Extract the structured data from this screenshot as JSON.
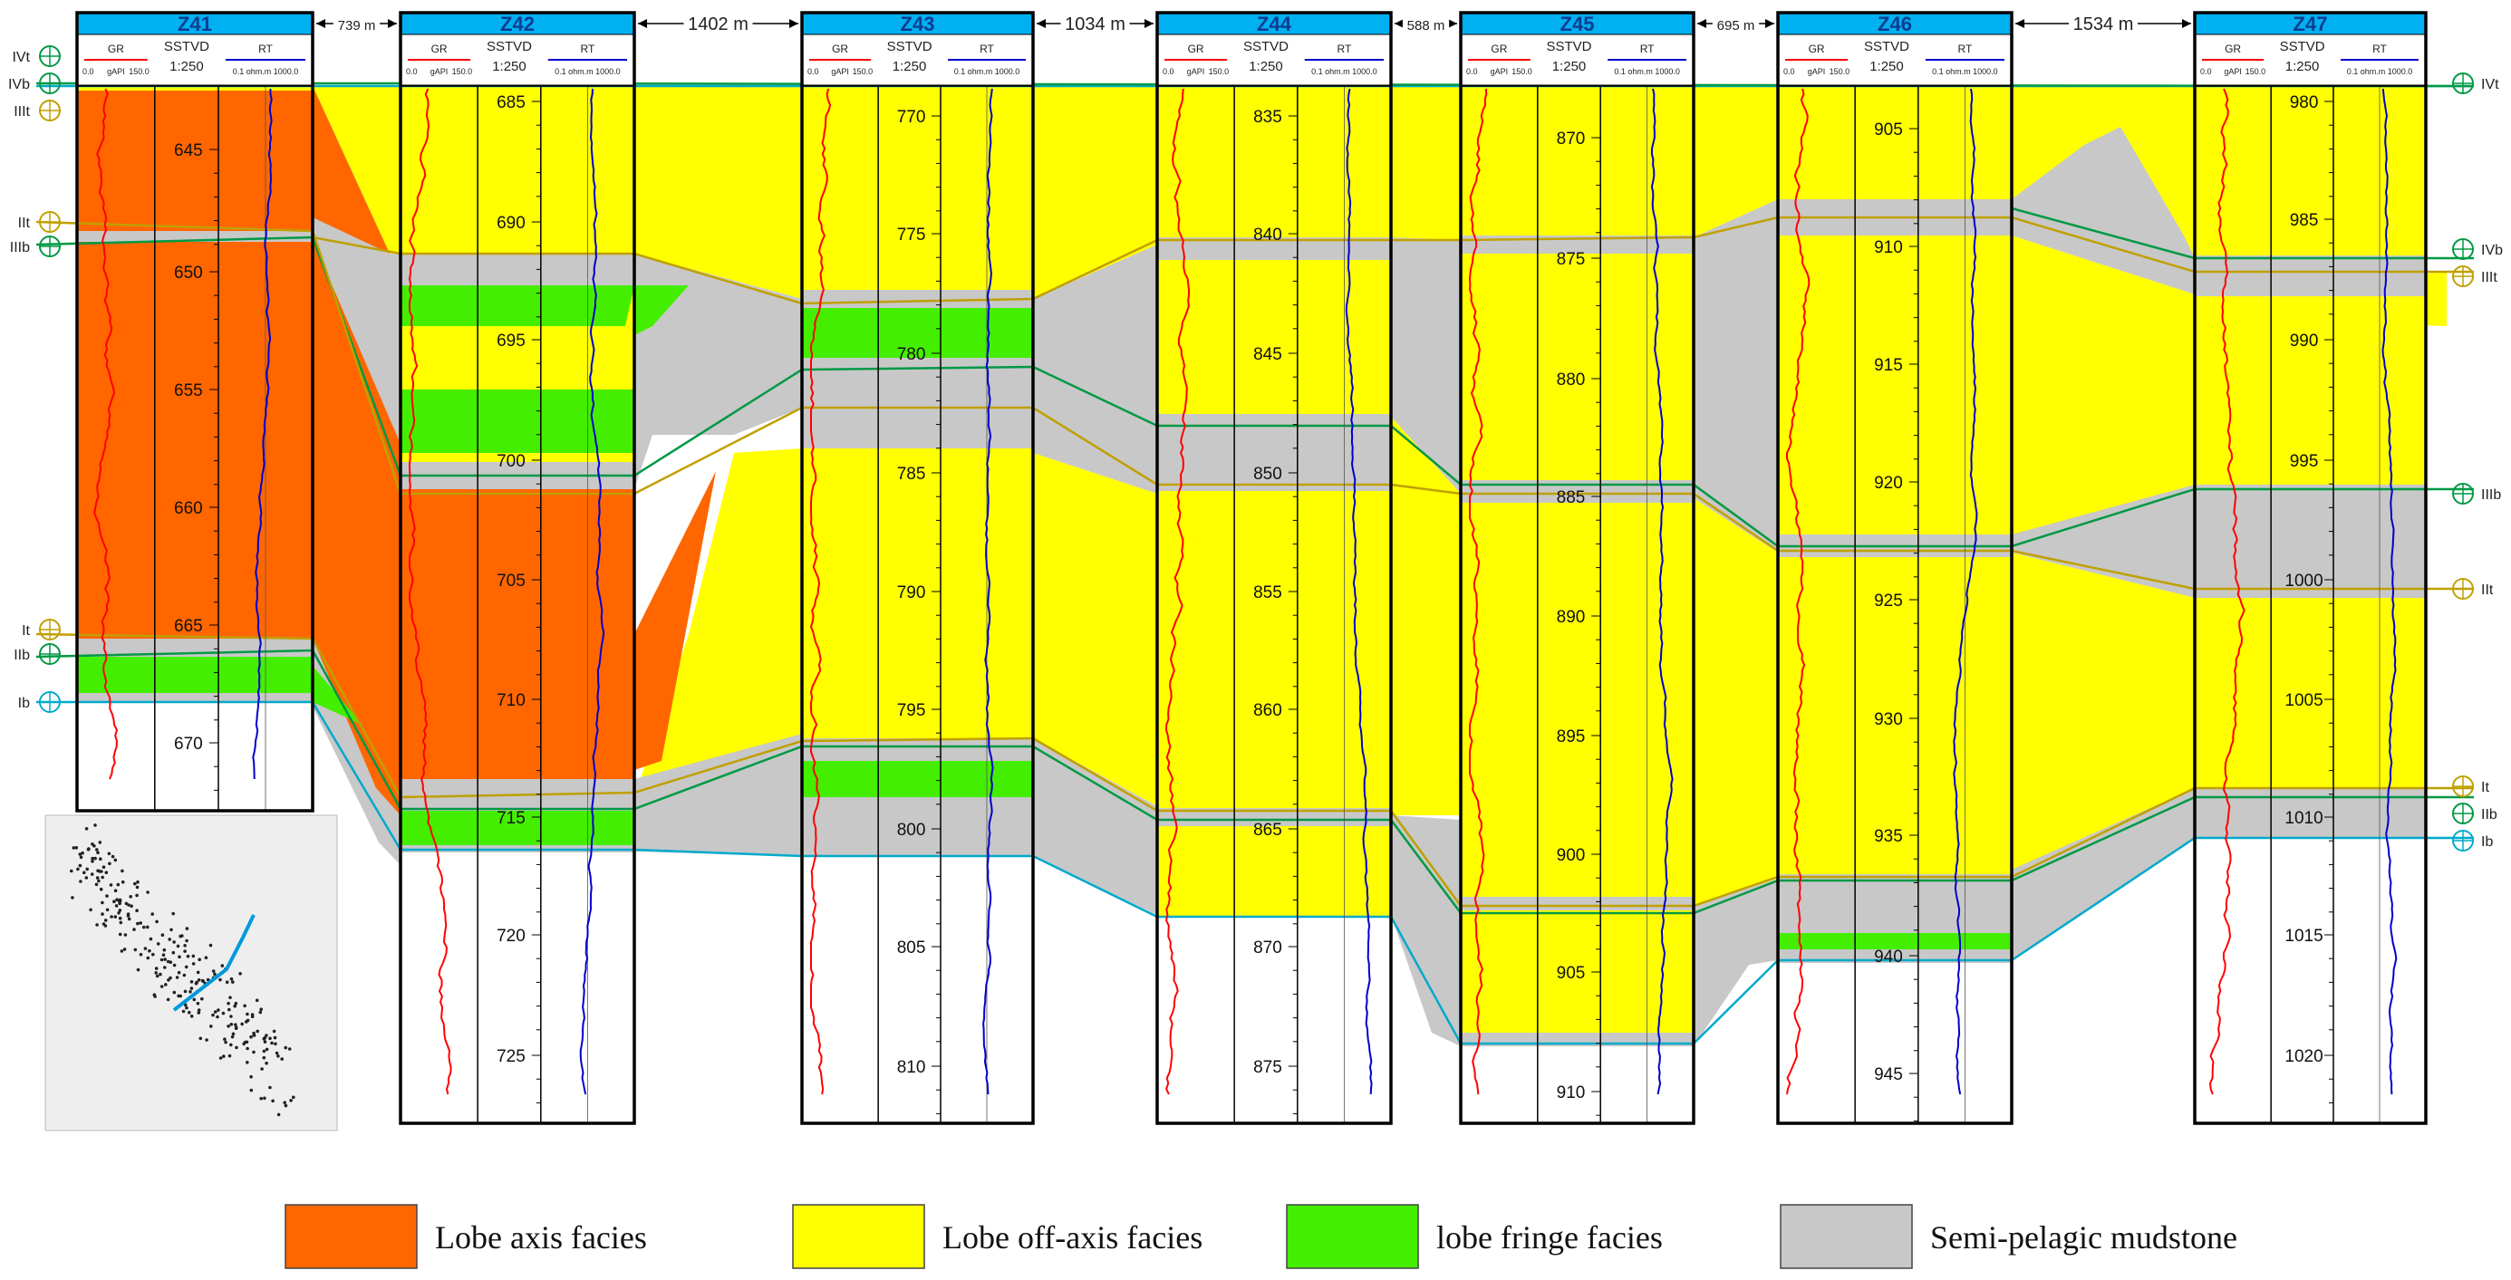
{
  "wells": [
    {
      "name": "Z41",
      "depth_labels": [
        "645",
        "650",
        "655",
        "660",
        "665",
        "670"
      ]
    },
    {
      "name": "Z42",
      "depth_labels": [
        "685",
        "690",
        "695",
        "700",
        "705",
        "710",
        "715",
        "720",
        "725"
      ]
    },
    {
      "name": "Z43",
      "depth_labels": [
        "770",
        "775",
        "780",
        "785",
        "790",
        "795",
        "800",
        "805",
        "810"
      ]
    },
    {
      "name": "Z44",
      "depth_labels": [
        "835",
        "840",
        "845",
        "850",
        "855",
        "860",
        "865",
        "870",
        "875"
      ]
    },
    {
      "name": "Z45",
      "depth_labels": [
        "870",
        "875",
        "880",
        "885",
        "890",
        "895",
        "900",
        "905",
        "910"
      ]
    },
    {
      "name": "Z46",
      "depth_labels": [
        "905",
        "910",
        "915",
        "920",
        "925",
        "930",
        "935",
        "940",
        "945"
      ]
    },
    {
      "name": "Z47",
      "depth_labels": [
        "980",
        "985",
        "990",
        "995",
        "1000",
        "1005",
        "1010",
        "1015",
        "1020"
      ]
    }
  ],
  "track_header": {
    "gr_label": "GR",
    "gr_scale_min": "0.0",
    "gr_scale_unit": "gAPI",
    "gr_scale_max": "150.0",
    "depth_label": "SSTVD",
    "depth_scale": "1:250",
    "rt_label": "RT",
    "rt_scale": "0.1 ohm.m 1000.0"
  },
  "spacings": [
    "739 m",
    "1402 m",
    "1034 m",
    "588 m",
    "695 m",
    "1534 m"
  ],
  "markers_left": [
    "IVt",
    "IVb",
    "IIIt",
    "IIt",
    "IIIb",
    "It",
    "IIb",
    "Ib"
  ],
  "markers_right": [
    "IVt",
    "IVb",
    "IIIt",
    "IIIb",
    "IIt",
    "It",
    "IIb",
    "Ib"
  ],
  "legend": [
    {
      "label": "Lobe axis facies",
      "color": "#ff6600"
    },
    {
      "label": "Lobe off-axis facies",
      "color": "#ffff00"
    },
    {
      "label": "lobe  fringe facies",
      "color": "#44ee00"
    },
    {
      "label": "Semi-pelagic mudstone",
      "color": "#c8c8c8"
    }
  ],
  "colors": {
    "header_bar": "#00b0f0",
    "gr_curve": "#ff0000",
    "rt_curve": "#0000cc",
    "marker_green": "#009944",
    "marker_gold": "#c0a000",
    "marker_cyan": "#00aacc"
  }
}
